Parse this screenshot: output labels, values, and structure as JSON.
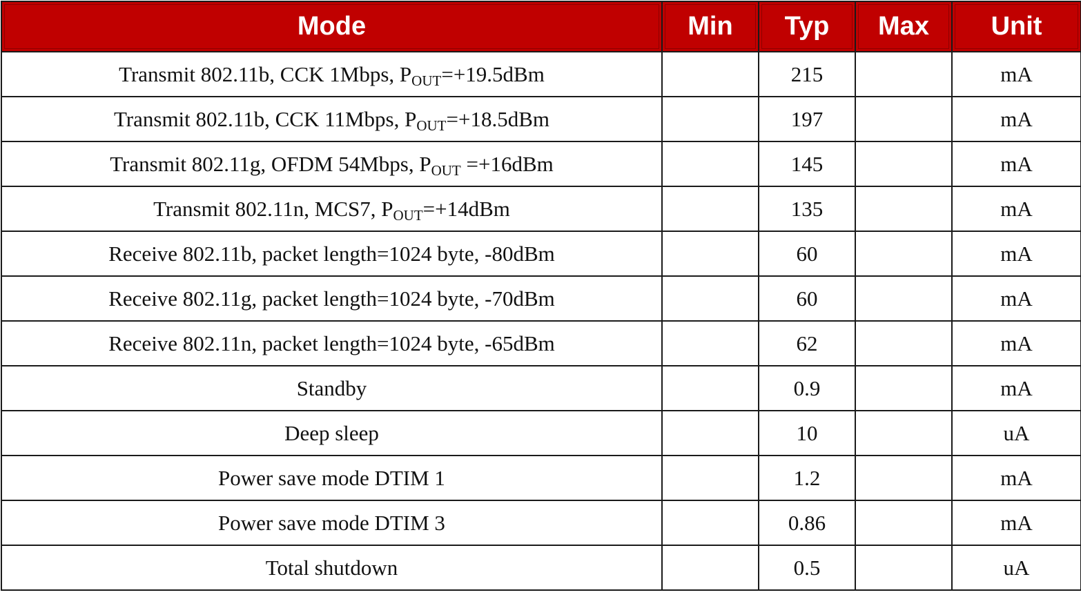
{
  "headers": {
    "mode": "Mode",
    "min": "Min",
    "typ": "Typ",
    "max": "Max",
    "unit": "Unit"
  },
  "rows": [
    {
      "mode_pre": "Transmit 802.11b, CCK 1Mbps, P",
      "mode_sub": "OUT",
      "mode_post": "=+19.5dBm",
      "min": "",
      "typ": "215",
      "max": "",
      "unit": "mA"
    },
    {
      "mode_pre": "Transmit 802.11b, CCK 11Mbps, P",
      "mode_sub": "OUT",
      "mode_post": "=+18.5dBm",
      "min": "",
      "typ": "197",
      "max": "",
      "unit": "mA"
    },
    {
      "mode_pre": "Transmit 802.11g, OFDM 54Mbps, P",
      "mode_sub": "OUT",
      "mode_post": " =+16dBm",
      "min": "",
      "typ": "145",
      "max": "",
      "unit": "mA"
    },
    {
      "mode_pre": "Transmit 802.11n, MCS7, P",
      "mode_sub": "OUT",
      "mode_post": "=+14dBm",
      "min": "",
      "typ": "135",
      "max": "",
      "unit": "mA"
    },
    {
      "mode_pre": "Receive 802.11b, packet length=1024 byte, -80dBm",
      "mode_sub": "",
      "mode_post": "",
      "min": "",
      "typ": "60",
      "max": "",
      "unit": "mA"
    },
    {
      "mode_pre": "Receive 802.11g, packet length=1024 byte, -70dBm",
      "mode_sub": "",
      "mode_post": "",
      "min": "",
      "typ": "60",
      "max": "",
      "unit": "mA"
    },
    {
      "mode_pre": "Receive 802.11n, packet length=1024 byte, -65dBm",
      "mode_sub": "",
      "mode_post": "",
      "min": "",
      "typ": "62",
      "max": "",
      "unit": "mA"
    },
    {
      "mode_pre": "Standby",
      "mode_sub": "",
      "mode_post": "",
      "min": "",
      "typ": "0.9",
      "max": "",
      "unit": "mA"
    },
    {
      "mode_pre": "Deep sleep",
      "mode_sub": "",
      "mode_post": "",
      "min": "",
      "typ": "10",
      "max": "",
      "unit": "uA"
    },
    {
      "mode_pre": "Power save mode DTIM 1",
      "mode_sub": "",
      "mode_post": "",
      "min": "",
      "typ": "1.2",
      "max": "",
      "unit": "mA"
    },
    {
      "mode_pre": "Power save mode DTIM 3",
      "mode_sub": "",
      "mode_post": "",
      "min": "",
      "typ": "0.86",
      "max": "",
      "unit": "mA"
    },
    {
      "mode_pre": "Total shutdown",
      "mode_sub": "",
      "mode_post": "",
      "min": "",
      "typ": "0.5",
      "max": "",
      "unit": "uA"
    }
  ],
  "colors": {
    "header_bg": "#c00000",
    "header_text": "#ffffff",
    "border": "#1a1a1a",
    "body_text": "#111111"
  }
}
